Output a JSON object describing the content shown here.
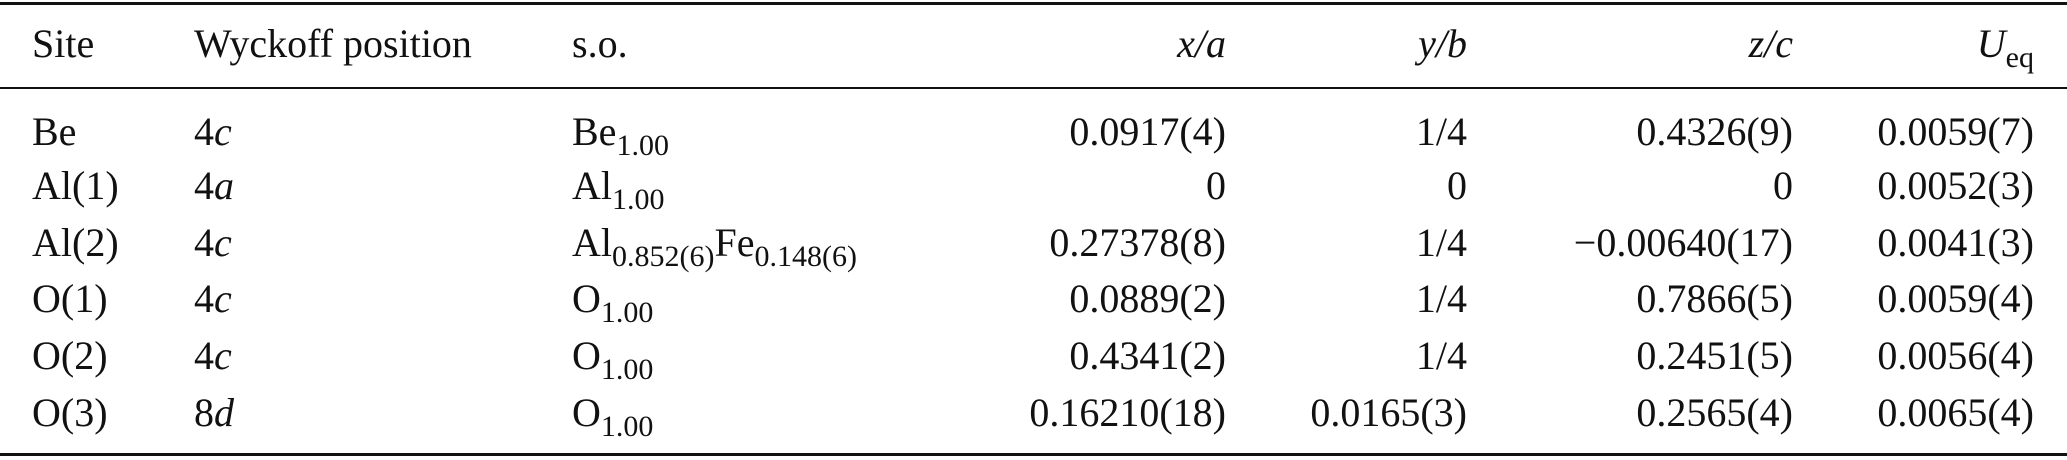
{
  "table": {
    "header": [
      "Site",
      "Wyckoff position",
      "s.o.",
      "x/a",
      "y/b",
      "z/c",
      {
        "text": "U",
        "sub": "eq"
      }
    ],
    "rows": [
      [
        "Be",
        {
          "number": "4",
          "letter": "c"
        },
        [
          {
            "text": "Be",
            "sub": "1.00"
          }
        ],
        "0.0917(4)",
        "1/4",
        "0.4326(9)",
        "0.0059(7)"
      ],
      [
        "Al(1)",
        {
          "number": "4",
          "letter": "a"
        },
        [
          {
            "text": "Al",
            "sub": "1.00"
          }
        ],
        "0",
        "0",
        "0",
        "0.0052(3)"
      ],
      [
        "Al(2)",
        {
          "number": "4",
          "letter": "c"
        },
        [
          {
            "text": "Al",
            "sub": "0.852(6)"
          },
          {
            "text": "Fe",
            "sub": "0.148(6)"
          }
        ],
        "0.27378(8)",
        "1/4",
        "−0.00640(17)",
        "0.0041(3)"
      ],
      [
        "O(1)",
        {
          "number": "4",
          "letter": "c"
        },
        [
          {
            "text": "O",
            "sub": "1.00"
          }
        ],
        "0.0889(2)",
        "1/4",
        "0.7866(5)",
        "0.0059(4)"
      ],
      [
        "O(2)",
        {
          "number": "4",
          "letter": "c"
        },
        [
          {
            "text": "O",
            "sub": "1.00"
          }
        ],
        "0.4341(2)",
        "1/4",
        "0.2451(5)",
        "0.0056(4)"
      ],
      [
        "O(3)",
        {
          "number": "8",
          "letter": "d"
        },
        [
          {
            "text": "O",
            "sub": "1.00"
          }
        ],
        "0.16210(18)",
        "0.0165(3)",
        "0.2565(4)",
        "0.0065(4)"
      ]
    ]
  }
}
